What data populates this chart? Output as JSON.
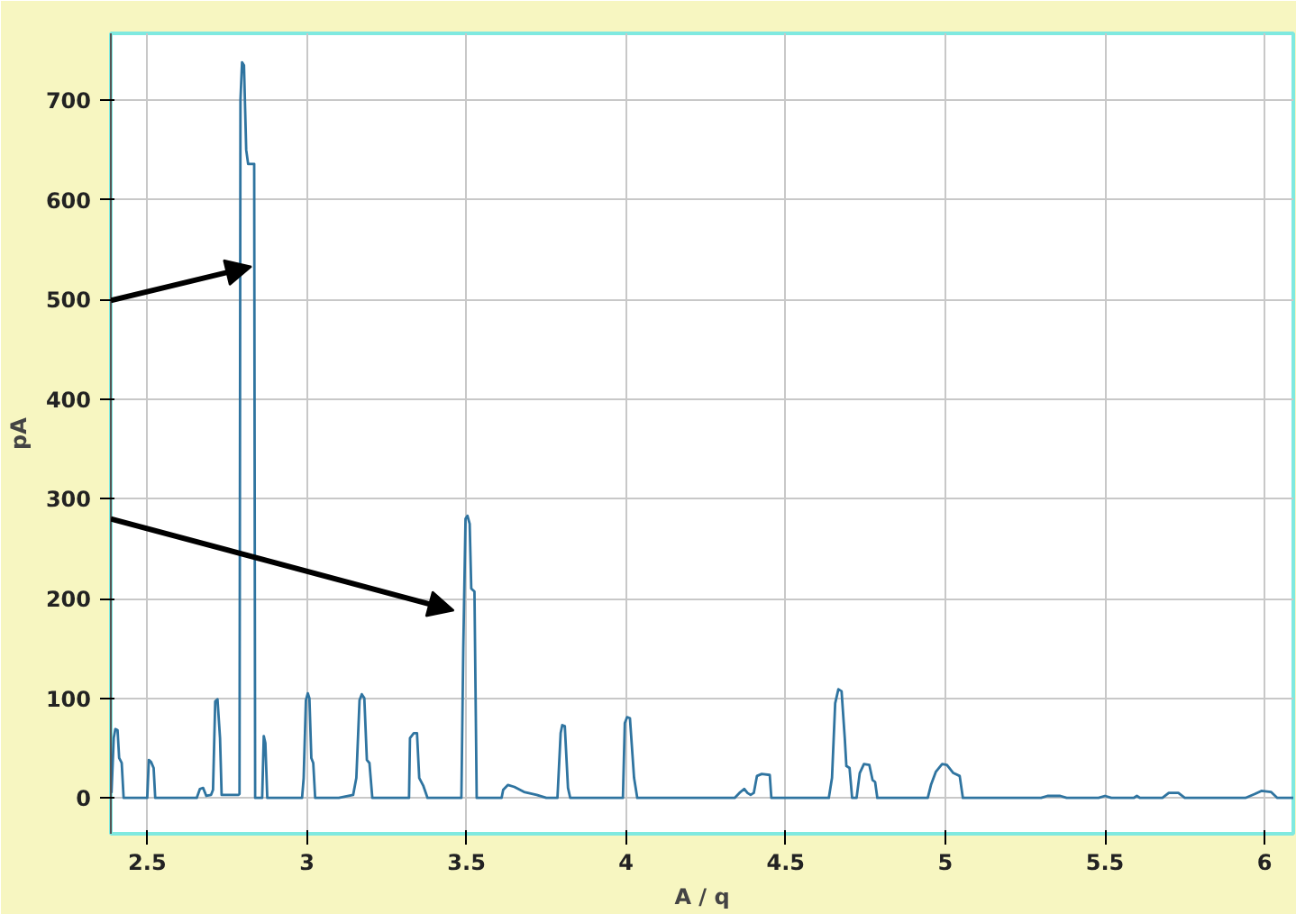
{
  "chart_data": {
    "type": "line",
    "xlabel": "A / q",
    "ylabel": "pA",
    "xlim": [
      2.386,
      6.09
    ],
    "ylim": [
      -36,
      767
    ],
    "xticks": [
      2.5,
      3,
      3.5,
      4,
      4.5,
      5,
      5.5,
      6
    ],
    "yticks": [
      0,
      100,
      200,
      300,
      400,
      500,
      600,
      700
    ],
    "grid": true,
    "series": [
      {
        "color": "#2f74a0",
        "x": [
          2.388,
          2.395,
          2.4,
          2.407,
          2.412,
          2.42,
          2.426,
          2.5,
          2.505,
          2.512,
          2.52,
          2.525,
          2.655,
          2.665,
          2.675,
          2.685,
          2.7,
          2.706,
          2.713,
          2.72,
          2.728,
          2.733,
          2.786,
          2.789,
          2.792,
          2.797,
          2.803,
          2.81,
          2.816,
          2.835,
          2.838,
          2.86,
          2.865,
          2.87,
          2.876,
          2.985,
          2.99,
          2.997,
          3.003,
          3.008,
          3.014,
          3.02,
          3.026,
          3.1,
          3.145,
          3.155,
          3.165,
          3.172,
          3.18,
          3.188,
          3.196,
          3.205,
          3.32,
          3.323,
          3.335,
          3.345,
          3.352,
          3.365,
          3.378,
          3.484,
          3.49,
          3.497,
          3.503,
          3.51,
          3.515,
          3.525,
          3.532,
          3.61,
          3.615,
          3.63,
          3.65,
          3.68,
          3.72,
          3.75,
          3.785,
          3.795,
          3.8,
          3.808,
          3.818,
          3.825,
          3.99,
          3.996,
          4.003,
          4.012,
          4.025,
          4.035,
          4.34,
          4.355,
          4.37,
          4.38,
          4.39,
          4.4,
          4.41,
          4.425,
          4.45,
          4.455,
          4.635,
          4.645,
          4.655,
          4.665,
          4.675,
          4.685,
          4.69,
          4.7,
          4.708,
          4.722,
          4.732,
          4.745,
          4.762,
          4.772,
          4.78,
          4.787,
          4.945,
          4.955,
          4.97,
          4.99,
          5.005,
          5.025,
          5.045,
          5.055,
          5.3,
          5.32,
          5.36,
          5.38,
          5.48,
          5.5,
          5.52,
          5.59,
          5.6,
          5.61,
          5.68,
          5.7,
          5.73,
          5.75,
          5.94,
          5.97,
          5.99,
          6.02,
          6.04,
          6.09
        ],
        "values": [
          5,
          60,
          69,
          68,
          40,
          35,
          0,
          0,
          38,
          36,
          30,
          0,
          0,
          9,
          10,
          2,
          3,
          8,
          97,
          99,
          60,
          3,
          3,
          4,
          700,
          738,
          735,
          650,
          636,
          636,
          0,
          0,
          62,
          55,
          0,
          0,
          20,
          98,
          105,
          100,
          40,
          35,
          0,
          0,
          3,
          20,
          98,
          104,
          100,
          38,
          35,
          0,
          0,
          60,
          65,
          65,
          20,
          12,
          0,
          0,
          150,
          280,
          283,
          275,
          210,
          207,
          0,
          0,
          8,
          13,
          11,
          6,
          3,
          0,
          0,
          65,
          73,
          72,
          10,
          0,
          0,
          75,
          81,
          80,
          20,
          0,
          0,
          5,
          9,
          5,
          3,
          5,
          22,
          24,
          23,
          0,
          0,
          20,
          95,
          109,
          107,
          60,
          32,
          30,
          0,
          0,
          25,
          34,
          33,
          18,
          16,
          0,
          0,
          13,
          26,
          34,
          33,
          25,
          22,
          0,
          0,
          2,
          2,
          0,
          0,
          2,
          0,
          0,
          2,
          0,
          0,
          5,
          5,
          0,
          0,
          4,
          7,
          6,
          0,
          0
        ]
      }
    ]
  }
}
